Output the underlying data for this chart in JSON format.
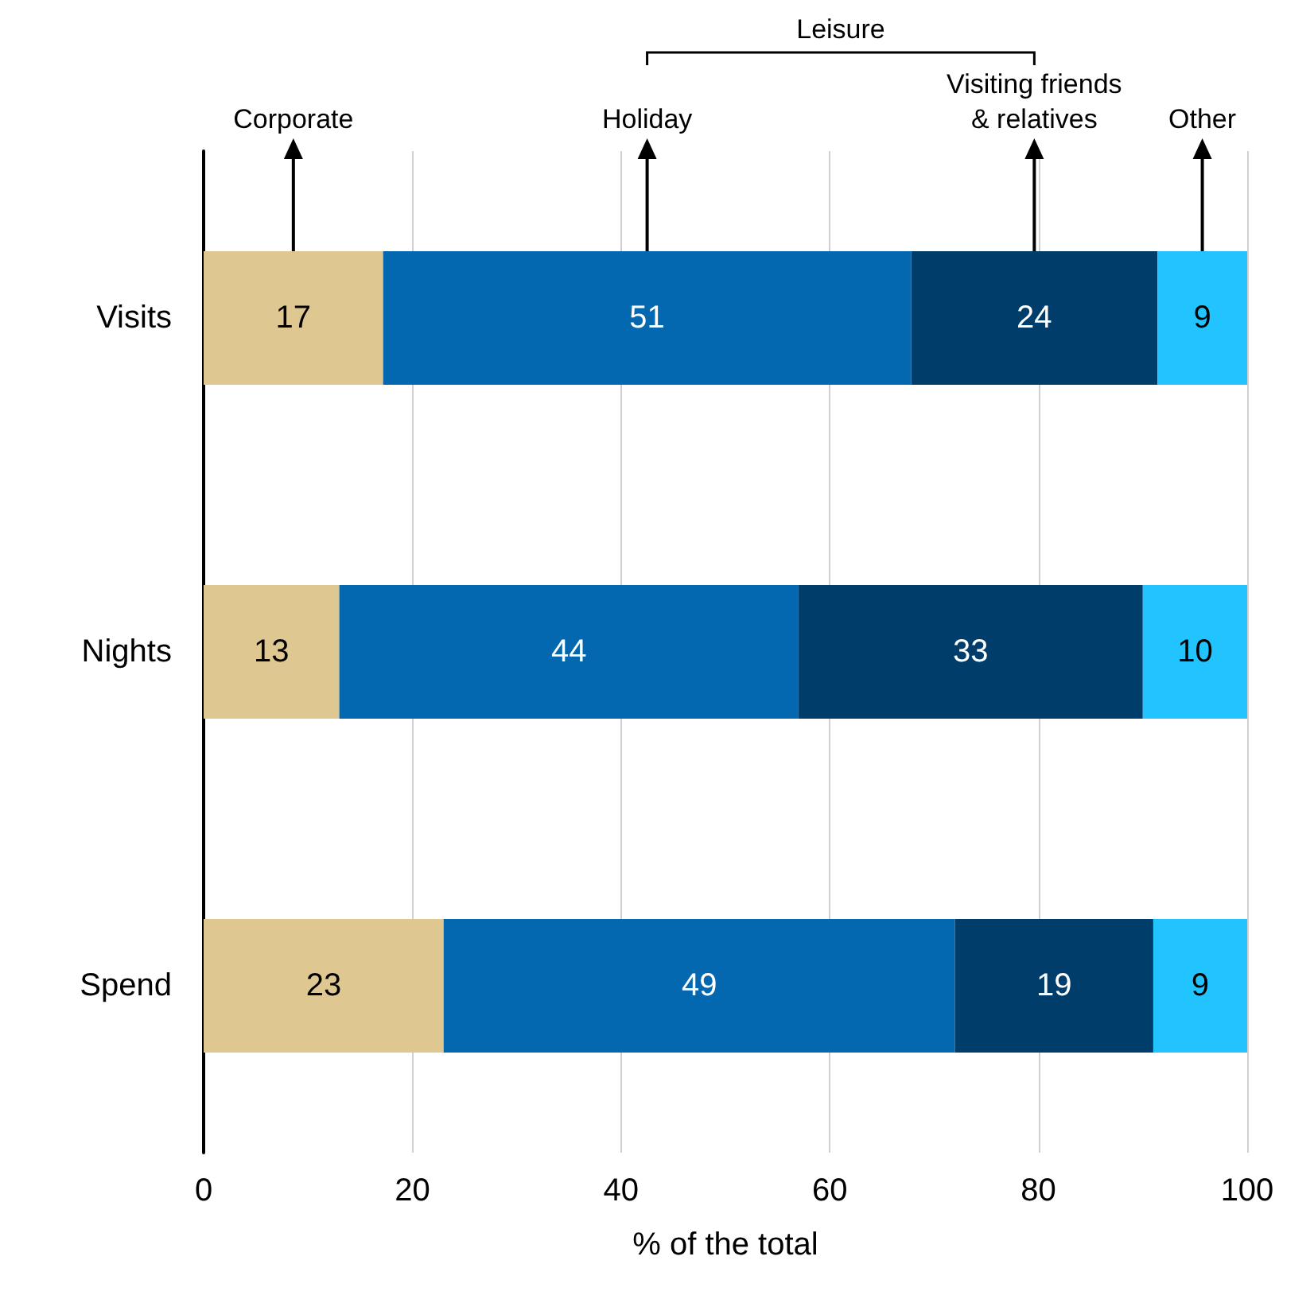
{
  "chart_data": {
    "type": "bar",
    "orientation": "horizontal",
    "stacked": true,
    "categories": [
      "Visits",
      "Nights",
      "Spend"
    ],
    "series": [
      {
        "name": "Corporate",
        "color": "#dfc791",
        "values": [
          17.2,
          13,
          23
        ],
        "value_labels": [
          "17",
          "13",
          "23"
        ]
      },
      {
        "name": "Holiday",
        "color": "#0468b1",
        "values": [
          50.6,
          44,
          49
        ],
        "value_labels": [
          "51",
          "44",
          "49"
        ]
      },
      {
        "name": "Visiting friends\n& relatives",
        "color": "#003d6b",
        "values": [
          23.6,
          33,
          19
        ],
        "value_labels": [
          "24",
          "33",
          "19"
        ]
      },
      {
        "name": "Other",
        "color": "#22c4ff",
        "values": [
          8.6,
          10,
          9
        ],
        "value_labels": [
          "9",
          "10",
          "9"
        ]
      }
    ],
    "xlim": [
      0,
      100
    ],
    "xticks": [
      0,
      20,
      40,
      60,
      80,
      100
    ],
    "xlabel": "% of the total",
    "annotations": [
      "Leisure"
    ],
    "grid": "x",
    "legend": false
  }
}
